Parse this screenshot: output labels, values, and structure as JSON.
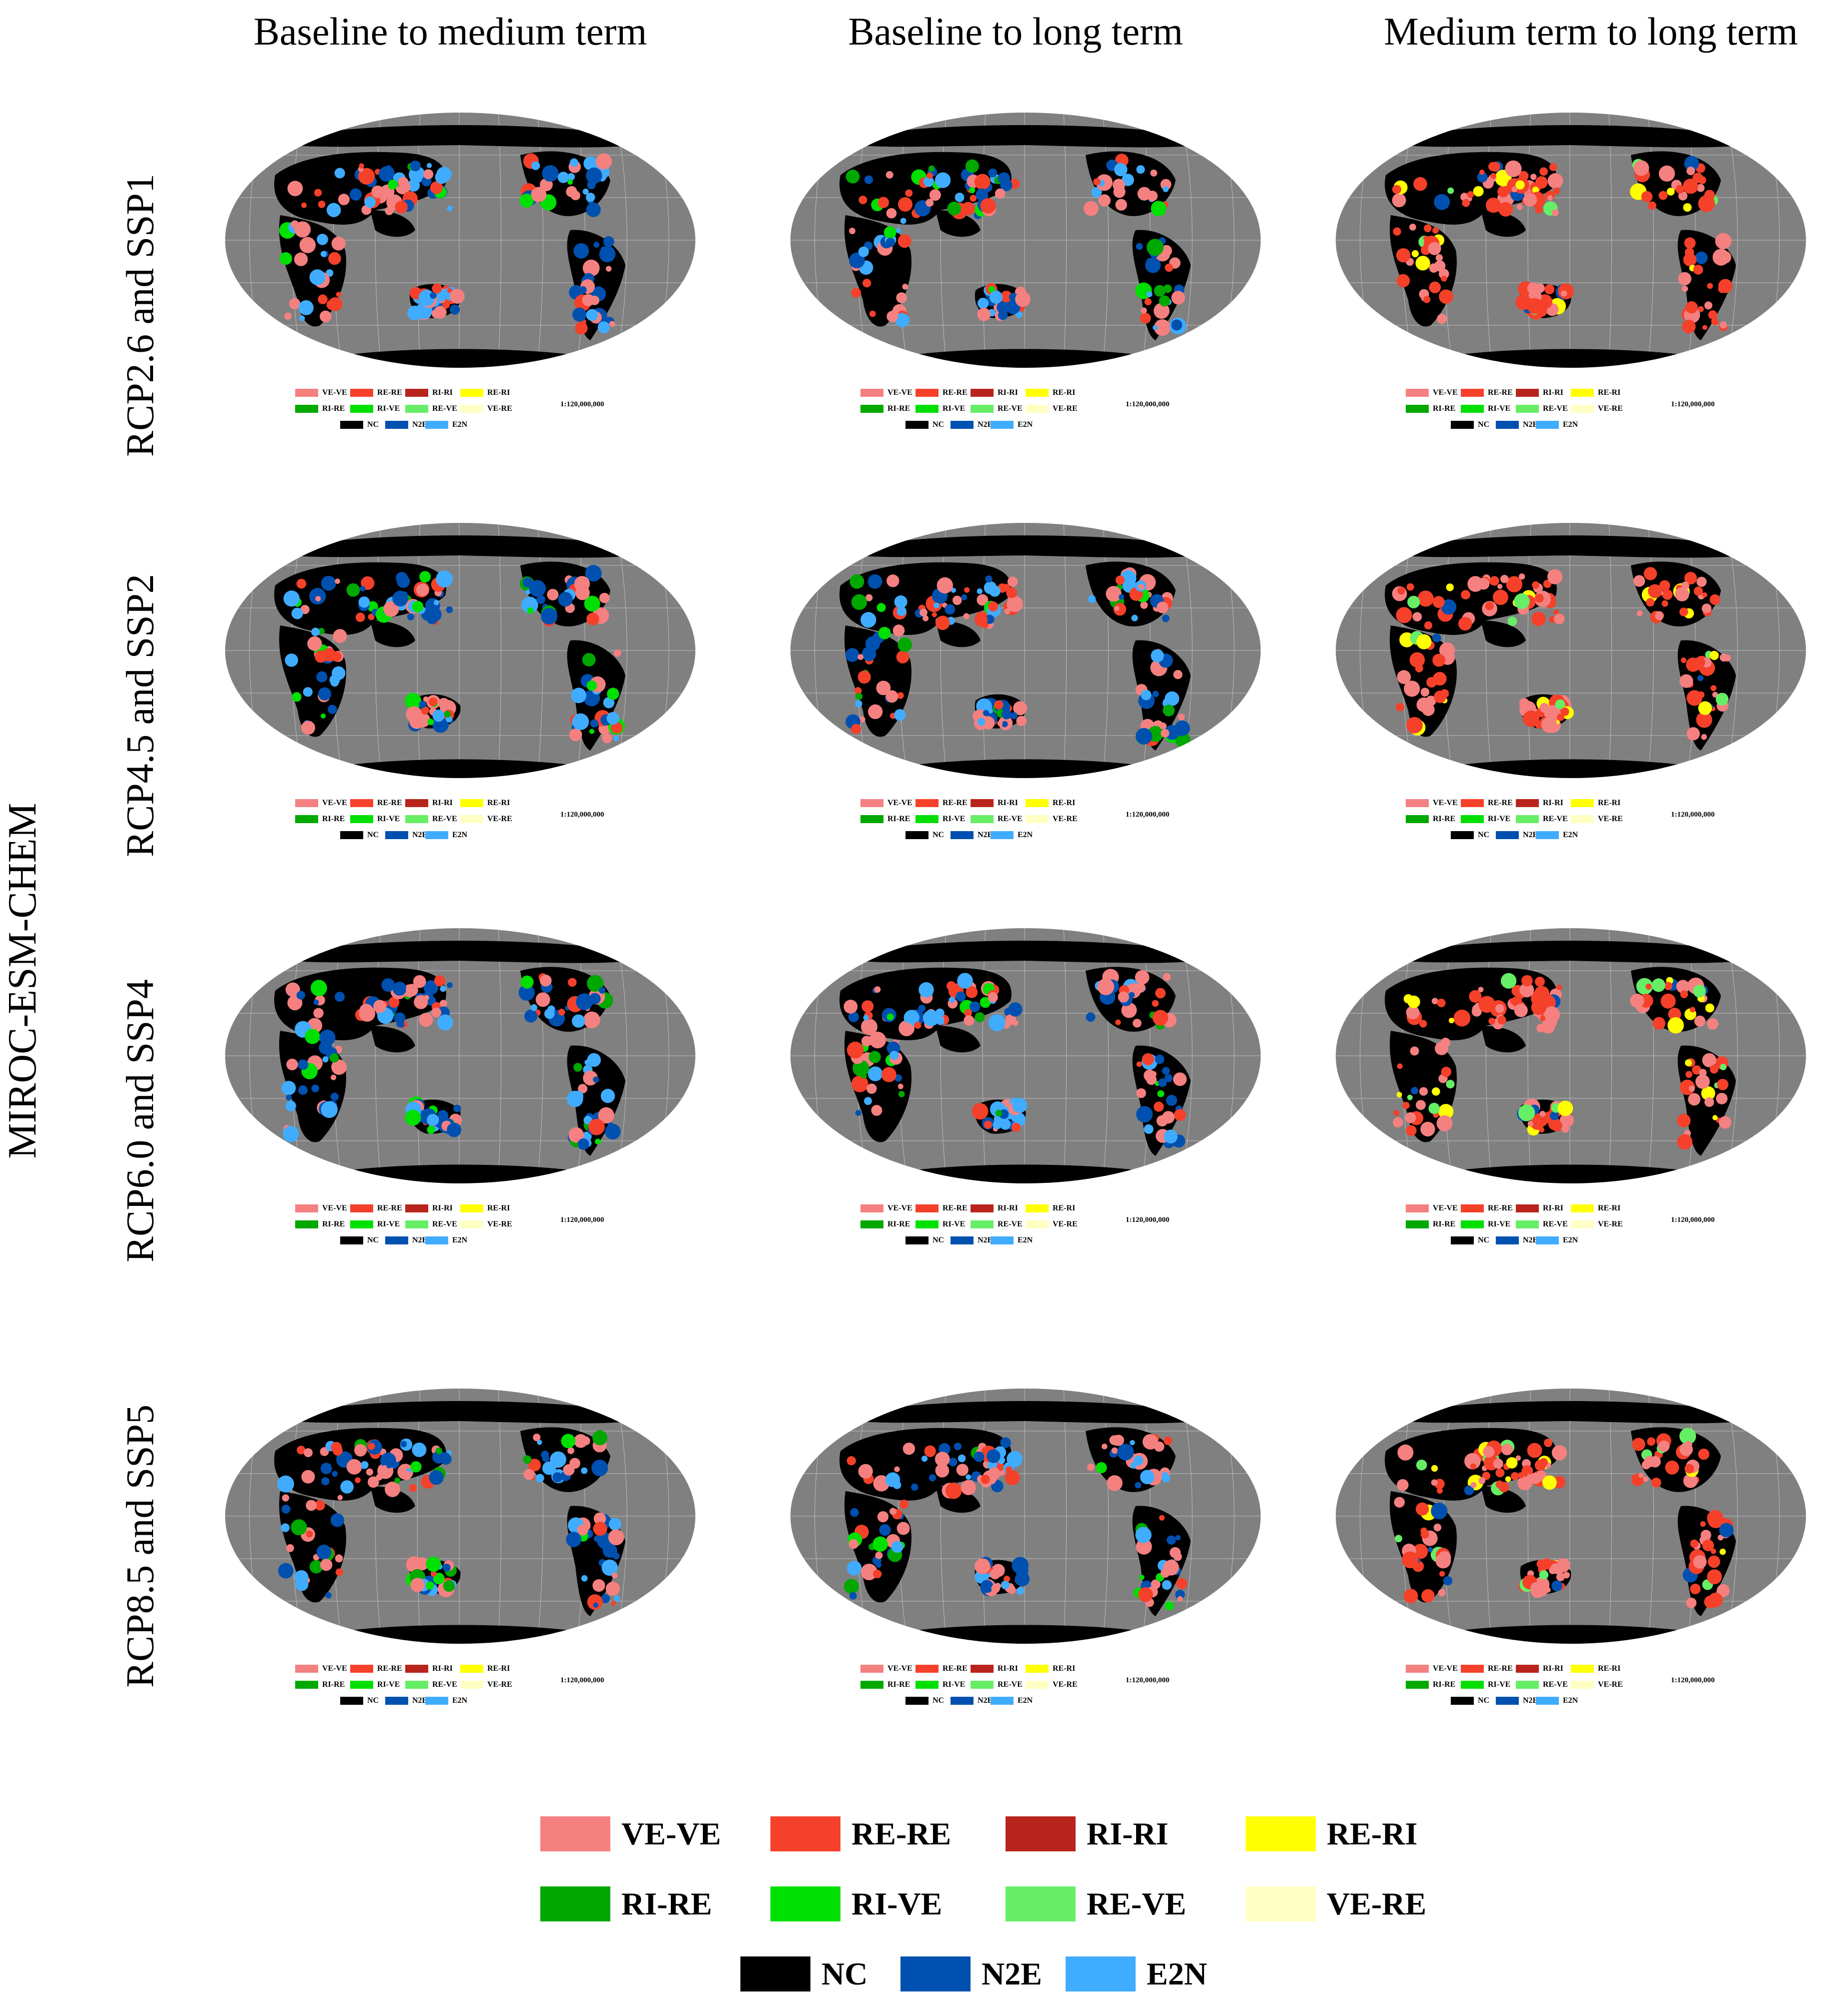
{
  "columns": [
    "Baseline to medium term",
    "Baseline to long term",
    "Medium term to long term"
  ],
  "rows": [
    "RCP2.6 and SSP1",
    "RCP4.5 and SSP2",
    "RCP6.0 and SSP4",
    "RCP8.5 and SSP5"
  ],
  "model": "MIROC-ESM-CHEM",
  "scale": "1:120,000,000",
  "map_style": {
    "ocean": "#808080",
    "land": "#000000",
    "graticule": "#bdbdbd"
  },
  "legend": [
    {
      "label": "VE-VE",
      "color": "#f58080"
    },
    {
      "label": "RE-RE",
      "color": "#f5402a"
    },
    {
      "label": "RI-RI",
      "color": "#b8241c"
    },
    {
      "label": "RE-RI",
      "color": "#ffff00"
    },
    {
      "label": "RI-RE",
      "color": "#00a800"
    },
    {
      "label": "RI-VE",
      "color": "#00e000"
    },
    {
      "label": "RE-VE",
      "color": "#66ee66"
    },
    {
      "label": "VE-RE",
      "color": "#ffffc4"
    },
    {
      "label": "NC",
      "color": "#000000"
    },
    {
      "label": "N2E",
      "color": "#0050b0"
    },
    {
      "label": "E2N",
      "color": "#40acff"
    }
  ]
}
